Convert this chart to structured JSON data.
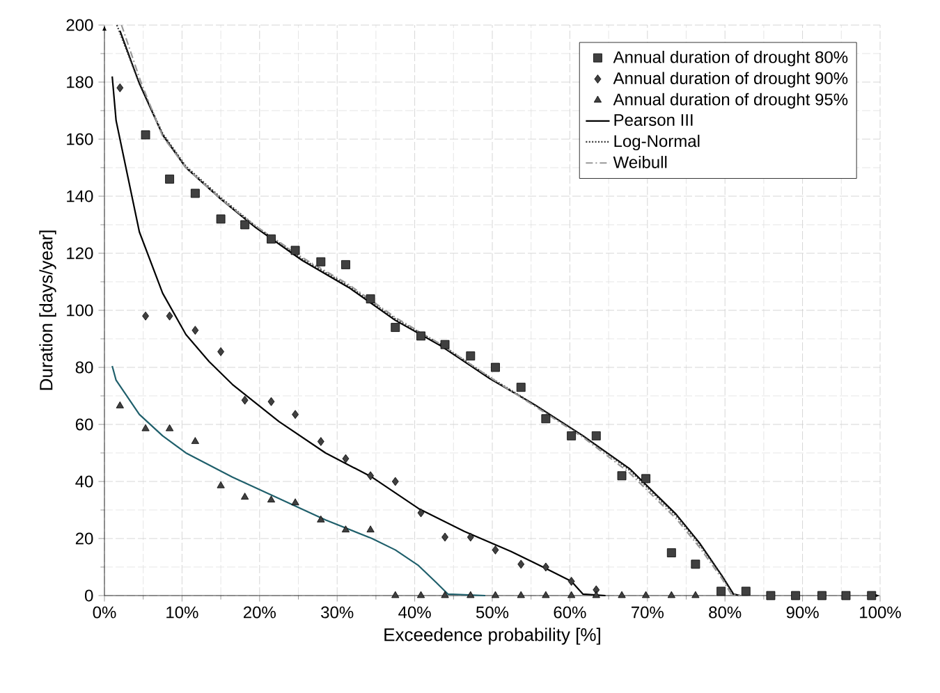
{
  "chart_data": {
    "type": "scatter",
    "xlabel": "Exceedence probability [%]",
    "ylabel": "Duration [days/year]",
    "xlim": [
      0,
      100
    ],
    "ylim": [
      0,
      200
    ],
    "xticks": [
      {
        "value": 0,
        "label": "0%"
      },
      {
        "value": 10,
        "label": "10%"
      },
      {
        "value": 20,
        "label": "20%"
      },
      {
        "value": 30,
        "label": "30%"
      },
      {
        "value": 40,
        "label": "40%"
      },
      {
        "value": 50,
        "label": "50%"
      },
      {
        "value": 60,
        "label": "60%"
      },
      {
        "value": 70,
        "label": "70%"
      },
      {
        "value": 80,
        "label": "80%"
      },
      {
        "value": 90,
        "label": "90%"
      },
      {
        "value": 100,
        "label": "100%"
      }
    ],
    "yticks": [
      0,
      20,
      40,
      60,
      80,
      100,
      120,
      140,
      160,
      180,
      200
    ],
    "grid": true,
    "legend": "top right",
    "series": [
      {
        "name": "Annual duration of drought 80%",
        "marker": "square",
        "color": "#404040",
        "x": [
          5.3,
          8.4,
          11.7,
          15.0,
          18.1,
          21.5,
          24.6,
          27.9,
          31.1,
          34.3,
          37.5,
          40.8,
          43.9,
          47.2,
          50.4,
          53.7,
          56.9,
          60.2,
          63.4,
          66.7,
          69.8,
          73.1,
          76.2,
          79.5,
          82.7,
          85.9,
          89.1,
          92.5,
          95.6,
          98.9
        ],
        "values": [
          161.5,
          146,
          141,
          132,
          130,
          125,
          121,
          117,
          116,
          104,
          94,
          91,
          88,
          84,
          80,
          73,
          62,
          56,
          56,
          42,
          41,
          15,
          11,
          1.5,
          1.5,
          0,
          0,
          0,
          0,
          0
        ]
      },
      {
        "name": "Annual duration of drought 90%",
        "marker": "diamond",
        "color": "#404040",
        "x": [
          2.0,
          5.3,
          8.4,
          11.7,
          15.0,
          18.1,
          21.5,
          24.6,
          27.9,
          31.1,
          34.3,
          37.5,
          40.8,
          43.9,
          47.2,
          50.4,
          53.7,
          56.9,
          60.2,
          63.4
        ],
        "values": [
          178,
          98,
          98,
          93,
          85.5,
          68.5,
          68,
          63.5,
          54,
          48,
          42,
          40,
          29,
          20.5,
          20.5,
          16,
          11,
          10,
          5,
          2
        ]
      },
      {
        "name": "Annual duration of drought 95%",
        "marker": "triangle",
        "color": "#404040",
        "x": [
          2.0,
          5.3,
          8.4,
          11.7,
          15.0,
          18.1,
          21.5,
          24.6,
          27.9,
          31.1,
          34.3,
          37.5,
          40.8,
          43.9,
          47.2,
          50.4,
          53.7,
          56.9,
          60.2,
          63.4,
          66.7,
          69.8,
          73.1,
          76.2
        ],
        "values": [
          66.5,
          58.5,
          58.5,
          54,
          38.5,
          34.5,
          33.5,
          32.5,
          26.5,
          23,
          23,
          0,
          0,
          0,
          0,
          0,
          0,
          0,
          0,
          0,
          0,
          0,
          0,
          0
        ]
      },
      {
        "name": "Pearson III",
        "type": "line",
        "marker": "none",
        "line_style": "solid",
        "color": "#000000",
        "x": [
          2.0,
          4.5,
          7.5,
          10.5,
          15,
          19.5,
          25.5,
          31.5,
          37.5,
          43.4,
          49.7,
          55.7,
          61.7,
          67.7,
          73.7,
          76.7,
          79.6,
          81.1,
          82.0
        ],
        "values": [
          198,
          179.5,
          161.5,
          150,
          139,
          129,
          117.5,
          108,
          96.5,
          87.5,
          76,
          66.5,
          56,
          44.5,
          28.5,
          18.5,
          7,
          0.5,
          0
        ]
      },
      {
        "name": "Log-Normal",
        "type": "line",
        "marker": "none",
        "line_style": "dotted",
        "color": "#333333",
        "x": [
          1.6,
          4.3,
          7.5,
          10.5,
          15,
          19.5,
          25.5,
          31.5,
          37.5,
          43.4,
          49.7,
          55.7,
          61.7,
          67.7,
          73.7,
          76.7,
          79.6,
          81.0,
          82.0
        ],
        "values": [
          200,
          181,
          162,
          150.5,
          139.5,
          129.5,
          118,
          108.5,
          97,
          88,
          76.5,
          66.5,
          56,
          44,
          28,
          18,
          7,
          0.5,
          0
        ]
      },
      {
        "name": "Weibull",
        "type": "line",
        "marker": "none",
        "line_style": "dashed",
        "color": "#999999",
        "x": [
          2.2,
          4.7,
          7.5,
          10.5,
          15,
          19.5,
          25.5,
          31.5,
          37.5,
          43.4,
          49.7,
          55.7,
          61.7,
          67.7,
          73.7,
          76.7,
          79.6,
          80.8,
          82.0
        ],
        "values": [
          200,
          180,
          161,
          150,
          139,
          129.5,
          118.5,
          109,
          97.5,
          88,
          76.5,
          66,
          55.5,
          43,
          27,
          17,
          6,
          0.5,
          0
        ]
      },
      {
        "type": "line",
        "marker": "none",
        "line_style": "solid",
        "color": "#000000",
        "x": [
          1.0,
          1.5,
          4.5,
          7.5,
          10.5,
          13.5,
          16.5,
          22.5,
          28.5,
          34.5,
          40.5,
          46.4,
          52.4,
          56.9,
          60.2,
          61.7,
          64.6
        ],
        "values": [
          182,
          166.5,
          127.5,
          106,
          91.5,
          82,
          74,
          61,
          50,
          41.5,
          30.5,
          22.5,
          15.5,
          9.5,
          5,
          0.5,
          0
        ]
      },
      {
        "type": "line",
        "marker": "none",
        "line_style": "solid",
        "color": "#1f5f6b",
        "x": [
          1.0,
          1.5,
          4.5,
          7.5,
          10.5,
          16.5,
          22.5,
          28.5,
          34.5,
          37.5,
          40.5,
          42.8,
          44.3,
          49.1
        ],
        "values": [
          80.5,
          75.5,
          63.5,
          56,
          50,
          41.5,
          34,
          26.5,
          20,
          16,
          10.5,
          4.5,
          0.5,
          0
        ]
      }
    ]
  }
}
